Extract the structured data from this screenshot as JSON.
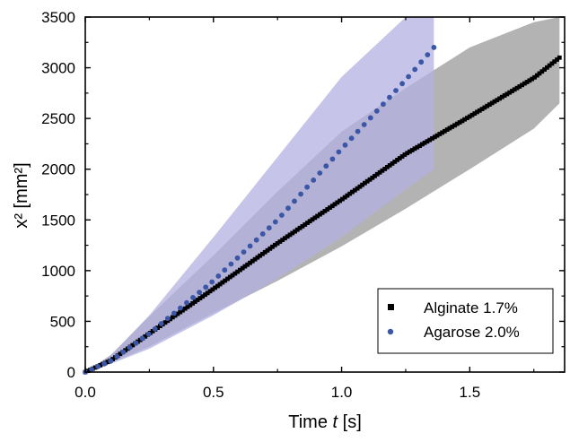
{
  "chart_data": {
    "type": "scatter",
    "xlabel_prefix": "Time ",
    "xlabel_var": "t",
    "xlabel_unit": " [s]",
    "ylabel": "x² [mm²]",
    "xlim": [
      0,
      1.87
    ],
    "ylim": [
      0,
      3500
    ],
    "xticks": [
      0.0,
      0.5,
      1.0,
      1.5
    ],
    "xtick_labels": [
      "0.0",
      "0.5",
      "1.0",
      "1.5"
    ],
    "yticks": [
      0,
      500,
      1000,
      1500,
      2000,
      2500,
      3000,
      3500
    ],
    "ytick_labels": [
      "0",
      "500",
      "1000",
      "1500",
      "2000",
      "2500",
      "3000",
      "3500"
    ],
    "legend_position": "bottom-right",
    "series": [
      {
        "name": "Alginate 1.7%",
        "marker": "square",
        "color": "#000000",
        "band_color": "#b3b3b3",
        "x_max": 1.85,
        "y_end": 3100,
        "exponent": 1.1,
        "x": [
          0.0,
          0.1,
          0.25,
          0.5,
          0.75,
          1.0,
          1.25,
          1.5,
          1.75,
          1.85
        ],
        "y": [
          0,
          115,
          380,
          820,
          1270,
          1700,
          2150,
          2520,
          2900,
          3100
        ],
        "band_upper": [
          0,
          170,
          550,
          1150,
          1780,
          2370,
          2800,
          3200,
          3450,
          3500
        ],
        "band_lower": [
          0,
          90,
          250,
          580,
          900,
          1240,
          1610,
          2000,
          2400,
          2650
        ]
      },
      {
        "name": "Agarose 2.0%",
        "marker": "circle",
        "color": "#3a56a5",
        "band_color": "#b3b0e0",
        "x_max": 1.36,
        "y_end": 3200,
        "exponent": 1.3,
        "x": [
          0.0,
          0.1,
          0.25,
          0.5,
          0.75,
          1.0,
          1.25,
          1.36
        ],
        "y": [
          0,
          110,
          380,
          900,
          1500,
          2200,
          2880,
          3200
        ],
        "band_upper": [
          0,
          165,
          560,
          1330,
          2120,
          2910,
          3500,
          3500
        ],
        "band_lower": [
          0,
          80,
          230,
          560,
          920,
          1330,
          1800,
          2000
        ]
      }
    ]
  }
}
